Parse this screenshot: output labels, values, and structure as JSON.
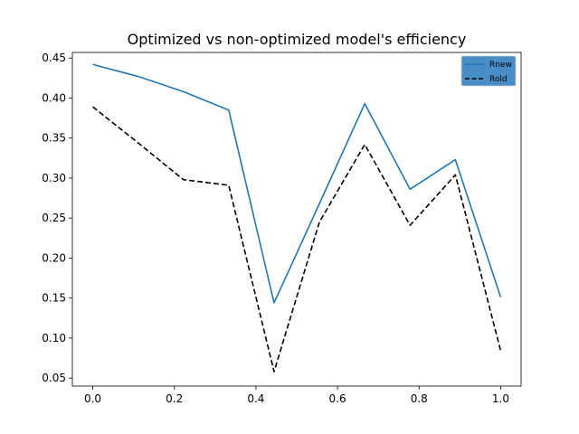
{
  "chart_data": {
    "type": "line",
    "title": "Optimized vs non-optimized model's efficiency",
    "xlabel": "",
    "ylabel": "",
    "x": [
      0.0,
      0.1111,
      0.2222,
      0.3333,
      0.4444,
      0.5556,
      0.6667,
      0.7778,
      0.8889,
      1.0
    ],
    "xlim": [
      -0.05,
      1.05
    ],
    "ylim": [
      0.04,
      0.457
    ],
    "xticks": [
      0.0,
      0.2,
      0.4,
      0.6,
      0.8,
      1.0
    ],
    "xtick_labels": [
      "0.0",
      "0.2",
      "0.4",
      "0.6",
      "0.8",
      "1.0"
    ],
    "yticks": [
      0.05,
      0.1,
      0.15,
      0.2,
      0.25,
      0.3,
      0.35,
      0.4,
      0.45
    ],
    "ytick_labels": [
      "0.05",
      "0.10",
      "0.15",
      "0.20",
      "0.25",
      "0.30",
      "0.35",
      "0.40",
      "0.45"
    ],
    "grid": false,
    "legend_position": "top-right",
    "series": [
      {
        "name": "Rnew",
        "values": [
          0.442,
          0.427,
          0.408,
          0.385,
          0.144,
          0.268,
          0.393,
          0.286,
          0.323,
          0.151
        ],
        "color": "#1f77b4",
        "style": "solid"
      },
      {
        "name": "Rold",
        "values": [
          0.389,
          0.344,
          0.298,
          0.291,
          0.058,
          0.245,
          0.342,
          0.241,
          0.304,
          0.084
        ],
        "color": "#000000",
        "style": "dashed"
      }
    ]
  }
}
